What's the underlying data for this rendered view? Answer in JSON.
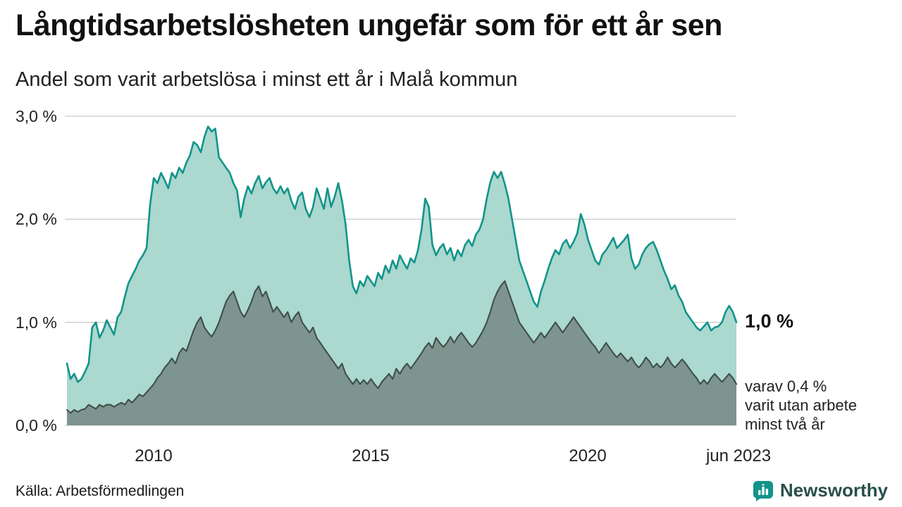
{
  "header": {
    "title": "Långtidsarbetslösheten ungefär som för ett år sen",
    "subtitle": "Andel som varit arbetslösa i minst ett år i Malå kommun"
  },
  "chart_data": {
    "type": "area",
    "x_start": "2008-01",
    "x_end": "2023-06",
    "x_frequency": "monthly",
    "x_tick_labels": [
      "2010",
      "2015",
      "2020",
      "jun 2023"
    ],
    "y_tick_labels": [
      "3,0 %",
      "2,0 %",
      "1,0 %",
      "0,0 %"
    ],
    "ylim": [
      0,
      3
    ],
    "unit": "%",
    "grid": "horizontal",
    "series": [
      {
        "name": "Andel arbetslösa minst ett år",
        "color_fill": "#abd8cf",
        "color_line": "#12948a",
        "last_value": 1.0,
        "values": [
          0.6,
          0.45,
          0.5,
          0.42,
          0.45,
          0.52,
          0.6,
          0.95,
          1.0,
          0.85,
          0.92,
          1.02,
          0.95,
          0.88,
          1.05,
          1.1,
          1.25,
          1.38,
          1.45,
          1.52,
          1.6,
          1.65,
          1.72,
          2.15,
          2.4,
          2.35,
          2.45,
          2.38,
          2.3,
          2.45,
          2.4,
          2.5,
          2.45,
          2.55,
          2.62,
          2.75,
          2.72,
          2.65,
          2.8,
          2.9,
          2.85,
          2.88,
          2.6,
          2.55,
          2.5,
          2.45,
          2.35,
          2.28,
          2.02,
          2.2,
          2.32,
          2.25,
          2.35,
          2.42,
          2.3,
          2.36,
          2.4,
          2.3,
          2.25,
          2.32,
          2.25,
          2.3,
          2.18,
          2.1,
          2.22,
          2.26,
          2.1,
          2.02,
          2.12,
          2.3,
          2.2,
          2.1,
          2.3,
          2.12,
          2.22,
          2.35,
          2.18,
          1.95,
          1.6,
          1.35,
          1.28,
          1.4,
          1.35,
          1.45,
          1.4,
          1.35,
          1.48,
          1.42,
          1.55,
          1.48,
          1.6,
          1.52,
          1.65,
          1.58,
          1.52,
          1.62,
          1.58,
          1.7,
          1.9,
          2.2,
          2.12,
          1.75,
          1.65,
          1.72,
          1.76,
          1.66,
          1.72,
          1.6,
          1.7,
          1.64,
          1.75,
          1.8,
          1.74,
          1.85,
          1.9,
          2.0,
          2.2,
          2.36,
          2.46,
          2.4,
          2.46,
          2.34,
          2.2,
          2.0,
          1.8,
          1.6,
          1.5,
          1.4,
          1.3,
          1.2,
          1.15,
          1.3,
          1.4,
          1.52,
          1.62,
          1.7,
          1.66,
          1.76,
          1.8,
          1.72,
          1.78,
          1.86,
          2.05,
          1.95,
          1.8,
          1.7,
          1.6,
          1.56,
          1.66,
          1.7,
          1.76,
          1.82,
          1.72,
          1.76,
          1.8,
          1.85,
          1.62,
          1.52,
          1.56,
          1.66,
          1.72,
          1.76,
          1.78,
          1.7,
          1.6,
          1.5,
          1.42,
          1.32,
          1.36,
          1.26,
          1.2,
          1.1,
          1.05,
          1.0,
          0.95,
          0.92,
          0.96,
          1.0,
          0.92,
          0.95,
          0.96,
          1.0,
          1.1,
          1.16,
          1.1,
          1.0
        ]
      },
      {
        "name": "varav utan arbete minst två år",
        "color_fill": "#7e948e",
        "color_line": "#3e4f49",
        "last_value": 0.4,
        "values": [
          0.15,
          0.12,
          0.15,
          0.13,
          0.15,
          0.16,
          0.2,
          0.18,
          0.16,
          0.2,
          0.18,
          0.2,
          0.2,
          0.18,
          0.2,
          0.22,
          0.2,
          0.25,
          0.22,
          0.26,
          0.3,
          0.28,
          0.32,
          0.36,
          0.4,
          0.46,
          0.5,
          0.56,
          0.6,
          0.65,
          0.6,
          0.7,
          0.75,
          0.72,
          0.82,
          0.92,
          1.0,
          1.05,
          0.95,
          0.9,
          0.86,
          0.92,
          1.0,
          1.1,
          1.2,
          1.26,
          1.3,
          1.2,
          1.1,
          1.05,
          1.12,
          1.2,
          1.3,
          1.35,
          1.25,
          1.3,
          1.2,
          1.1,
          1.15,
          1.1,
          1.05,
          1.1,
          1.0,
          1.06,
          1.1,
          1.0,
          0.95,
          0.9,
          0.95,
          0.85,
          0.8,
          0.75,
          0.7,
          0.65,
          0.6,
          0.55,
          0.6,
          0.5,
          0.45,
          0.4,
          0.45,
          0.4,
          0.44,
          0.4,
          0.45,
          0.4,
          0.36,
          0.42,
          0.46,
          0.5,
          0.45,
          0.55,
          0.5,
          0.56,
          0.6,
          0.55,
          0.6,
          0.65,
          0.7,
          0.76,
          0.8,
          0.75,
          0.85,
          0.8,
          0.76,
          0.8,
          0.86,
          0.8,
          0.86,
          0.9,
          0.85,
          0.8,
          0.76,
          0.8,
          0.86,
          0.92,
          1.0,
          1.1,
          1.22,
          1.3,
          1.36,
          1.4,
          1.3,
          1.2,
          1.1,
          1.0,
          0.95,
          0.9,
          0.85,
          0.8,
          0.85,
          0.9,
          0.85,
          0.9,
          0.95,
          1.0,
          0.95,
          0.9,
          0.95,
          1.0,
          1.05,
          1.0,
          0.95,
          0.9,
          0.85,
          0.8,
          0.76,
          0.7,
          0.75,
          0.8,
          0.75,
          0.7,
          0.66,
          0.7,
          0.66,
          0.62,
          0.66,
          0.6,
          0.56,
          0.6,
          0.66,
          0.62,
          0.56,
          0.6,
          0.56,
          0.6,
          0.66,
          0.6,
          0.56,
          0.6,
          0.64,
          0.6,
          0.55,
          0.5,
          0.46,
          0.4,
          0.44,
          0.4,
          0.46,
          0.5,
          0.46,
          0.42,
          0.46,
          0.5,
          0.46,
          0.4
        ]
      }
    ],
    "annotations": {
      "last_value_label": "1,0 %",
      "secondary_label_lines": [
        "varav 0,4 %",
        "varit utan arbete",
        "minst två år"
      ]
    },
    "grid_color": "#cccccc"
  },
  "footer": {
    "source": "Källa: Arbetsförmedlingen",
    "brand": "Newsworthy"
  }
}
